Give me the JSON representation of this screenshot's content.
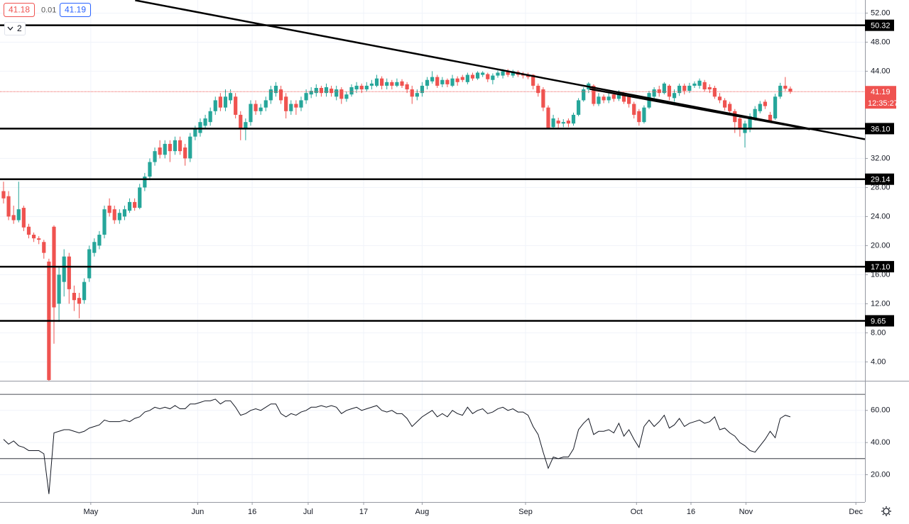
{
  "header": {
    "bid": "41.18",
    "spread": "0.01",
    "ask": "41.19",
    "indicators": "2"
  },
  "chart_data": [
    {
      "type": "candlestick",
      "xlim": [
        -0.7,
        170.8
      ],
      "ylim": [
        1.4,
        53.8
      ],
      "yticks": [
        {
          "value": 4,
          "label": "4.00"
        },
        {
          "value": 8,
          "label": "8.00"
        },
        {
          "value": 12,
          "label": "12.00"
        },
        {
          "value": 16,
          "label": "16.00"
        },
        {
          "value": 20,
          "label": "20.00"
        },
        {
          "value": 24,
          "label": "24.00"
        },
        {
          "value": 28,
          "label": "28.00"
        },
        {
          "value": 32,
          "label": "32.00"
        },
        {
          "value": 44,
          "label": "44.00"
        },
        {
          "value": 48,
          "label": "48.00"
        },
        {
          "value": 52,
          "label": "52.00"
        }
      ],
      "grid": true,
      "up_color": "#26a69a",
      "down_color": "#ef5350",
      "open": [
        27.5,
        26.8,
        24.2,
        23.5,
        25.2,
        22.6,
        21.5,
        21.0,
        20.5,
        17.8,
        22.6,
        12.0,
        15.0,
        18.5,
        13.5,
        12.8,
        12.5,
        15.5,
        19.0,
        20.0,
        21.5,
        25.5,
        25.0,
        23.5,
        24.0,
        24.8,
        26.0,
        25.2,
        28.0,
        29.5,
        31.5,
        33.5,
        32.5,
        34.0,
        33.0,
        34.5,
        33.5,
        32.0,
        35.0,
        35.5,
        36.5,
        37.0,
        38.5,
        40.5,
        39.0,
        40.0,
        40.5,
        38.0,
        36.0,
        37.0,
        39.5,
        38.5,
        39.0,
        40.0,
        41.0,
        41.5,
        40.5,
        38.5,
        39.5,
        39.0,
        40.0,
        40.8,
        41.0,
        41.7,
        41.0,
        41.6,
        40.5,
        41.5,
        40.2,
        40.8,
        41.5,
        42.0,
        41.5,
        42.0,
        42.0,
        43.0,
        42.0,
        42.5,
        42.0,
        42.6,
        42.2,
        41.5,
        40.5,
        41.0,
        42.0,
        42.6,
        43.2,
        42.2,
        42.8,
        42.0,
        43.0,
        43.2,
        42.5,
        43.5,
        43.0,
        43.5,
        43.6,
        42.8,
        43.4,
        43.4,
        44.0,
        43.4,
        43.9,
        43.6,
        43.5,
        43.5,
        42.0,
        41.5,
        39.0,
        36.3,
        37.2,
        36.8,
        37.2,
        36.8,
        38.0,
        40.0,
        41.5,
        42.0,
        39.5,
        40.5,
        40.0,
        40.8,
        40.2,
        41.0,
        40.5,
        39.5,
        38.5,
        37.0,
        39.0,
        40.5,
        41.5,
        41.0,
        42.0,
        40.3,
        41.0,
        42.0,
        41.3,
        42.0,
        42.0,
        42.5,
        41.8,
        41.7,
        40.5,
        40.0,
        39.5,
        38.5,
        37.5,
        35.5,
        36.0,
        37.5,
        38.5,
        39.8,
        38.0,
        37.5,
        40.5,
        42.0,
        41.6
      ],
      "high": [
        28.8,
        27.5,
        25.5,
        28.8,
        25.5,
        23.0,
        21.8,
        21.3,
        20.8,
        18.2,
        22.8,
        17.0,
        19.5,
        19.0,
        14.5,
        13.5,
        15.5,
        20.0,
        21.0,
        22.0,
        25.5,
        26.5,
        25.5,
        25.0,
        25.5,
        26.5,
        26.5,
        28.5,
        30.0,
        32.0,
        33.5,
        34.5,
        34.5,
        34.5,
        35.0,
        35.0,
        34.0,
        35.5,
        36.5,
        37.5,
        38.0,
        39.0,
        40.5,
        41.0,
        41.5,
        41.5,
        41.0,
        38.5,
        37.5,
        40.0,
        40.0,
        39.5,
        40.5,
        42.0,
        42.5,
        42.0,
        41.0,
        40.0,
        40.0,
        40.5,
        41.5,
        41.8,
        42.2,
        42.0,
        42.3,
        42.0,
        42.0,
        41.8,
        41.2,
        42.2,
        42.5,
        42.3,
        42.5,
        42.8,
        43.5,
        43.3,
        43.0,
        42.8,
        43.0,
        42.9,
        42.5,
        42.0,
        41.5,
        42.5,
        43.2,
        44.0,
        43.5,
        43.2,
        43.0,
        43.5,
        43.3,
        43.5,
        43.8,
        43.8,
        44.0,
        44.0,
        43.8,
        43.7,
        44.1,
        44.3,
        44.3,
        44.2,
        44.1,
        43.9,
        43.8,
        43.6,
        42.3,
        41.8,
        39.3,
        38.0,
        37.6,
        37.4,
        37.5,
        38.3,
        40.3,
        41.8,
        42.5,
        42.2,
        41.0,
        40.8,
        41.0,
        41.2,
        41.4,
        41.2,
        40.8,
        39.8,
        38.8,
        39.3,
        41.3,
        41.8,
        42.0,
        42.5,
        42.2,
        41.5,
        42.3,
        42.3,
        42.4,
        42.6,
        43.0,
        42.8,
        42.2,
        42.0,
        41.0,
        40.3,
        39.8,
        38.8,
        37.8,
        37.2,
        38.2,
        39.2,
        39.9,
        40.1,
        38.4,
        40.9,
        42.4,
        43.2,
        41.9
      ],
      "low": [
        25.8,
        23.5,
        23.0,
        23.2,
        22.0,
        21.0,
        20.5,
        20.2,
        18.2,
        1.4,
        6.5,
        9.5,
        13.0,
        12.0,
        11.0,
        10.0,
        12.0,
        15.0,
        18.5,
        19.5,
        21.0,
        24.0,
        23.0,
        23.0,
        23.5,
        24.5,
        24.8,
        25.0,
        27.5,
        29.0,
        31.0,
        32.0,
        32.0,
        31.5,
        32.5,
        32.5,
        31.0,
        31.5,
        34.5,
        35.0,
        36.0,
        36.5,
        38.0,
        38.5,
        38.5,
        39.5,
        37.5,
        34.5,
        34.5,
        36.5,
        38.0,
        38.0,
        38.5,
        39.5,
        40.5,
        39.5,
        37.5,
        38.0,
        38.0,
        38.5,
        39.5,
        40.3,
        40.5,
        40.5,
        40.5,
        40.5,
        40.0,
        39.5,
        39.8,
        40.5,
        41.0,
        41.0,
        41.2,
        41.5,
        41.8,
        41.5,
        41.5,
        41.5,
        41.8,
        41.7,
        41.0,
        39.5,
        40.0,
        40.5,
        41.5,
        42.3,
        41.7,
        41.8,
        41.8,
        41.8,
        42.0,
        42.5,
        42.2,
        42.7,
        42.8,
        43.2,
        42.5,
        42.2,
        43.1,
        43.0,
        43.2,
        43.1,
        43.2,
        43.0,
        42.9,
        41.5,
        40.5,
        38.5,
        36.0,
        36.0,
        36.2,
        36.3,
        36.3,
        36.5,
        37.8,
        39.8,
        41.0,
        39.2,
        39.2,
        39.6,
        39.6,
        39.8,
        39.9,
        39.5,
        39.0,
        37.5,
        36.5,
        36.8,
        38.8,
        40.2,
        40.5,
        40.8,
        40.0,
        39.8,
        40.6,
        40.8,
        41.0,
        41.7,
        41.6,
        41.2,
        41.0,
        40.2,
        39.6,
        38.6,
        38.0,
        35.5,
        35.0,
        33.5,
        35.6,
        37.2,
        38.2,
        38.8,
        36.9,
        37.3,
        40.2,
        41.3,
        40.9
      ],
      "close": [
        26.5,
        24.0,
        23.5,
        25.0,
        22.5,
        21.5,
        21.0,
        20.8,
        19.0,
        1.5,
        11.5,
        16.0,
        18.5,
        14.0,
        12.5,
        12.0,
        15.0,
        19.5,
        20.5,
        21.5,
        25.0,
        24.5,
        23.5,
        24.5,
        25.0,
        26.0,
        25.2,
        28.0,
        29.5,
        31.5,
        33.0,
        32.5,
        34.0,
        33.0,
        34.5,
        33.0,
        32.0,
        35.0,
        36.0,
        37.0,
        37.5,
        38.5,
        40.0,
        39.0,
        40.5,
        41.0,
        38.0,
        36.0,
        37.0,
        39.5,
        38.5,
        39.0,
        40.0,
        41.5,
        42.0,
        40.0,
        38.5,
        39.5,
        39.0,
        40.0,
        41.0,
        41.3,
        41.7,
        41.0,
        41.8,
        41.0,
        41.5,
        40.2,
        40.8,
        41.8,
        42.0,
        41.5,
        42.0,
        42.3,
        43.0,
        42.0,
        42.5,
        42.0,
        42.5,
        42.0,
        41.5,
        40.5,
        41.0,
        42.0,
        42.8,
        43.2,
        42.0,
        42.8,
        42.2,
        43.0,
        42.5,
        42.8,
        43.5,
        43.0,
        43.8,
        43.8,
        42.9,
        43.4,
        43.8,
        44.0,
        43.5,
        44.0,
        43.5,
        43.4,
        43.2,
        42.0,
        41.0,
        39.0,
        36.2,
        37.5,
        36.8,
        37.0,
        36.8,
        38.0,
        40.0,
        41.5,
        42.3,
        39.5,
        40.5,
        40.0,
        40.5,
        40.2,
        41.0,
        39.8,
        39.5,
        38.0,
        37.0,
        39.0,
        41.0,
        41.5,
        41.0,
        42.3,
        40.5,
        41.0,
        42.0,
        41.3,
        42.0,
        42.3,
        42.7,
        41.5,
        41.5,
        40.5,
        40.0,
        39.0,
        38.5,
        37.0,
        36.0,
        36.8,
        37.8,
        38.8,
        39.5,
        39.2,
        37.2,
        40.5,
        42.0,
        41.6,
        41.19
      ],
      "levels": [
        {
          "value": 50.32,
          "label": "50.32"
        },
        {
          "value": 36.1,
          "label": "36.10"
        },
        {
          "value": 29.14,
          "label": "29.14"
        },
        {
          "value": 17.1,
          "label": "17.10"
        },
        {
          "value": 9.65,
          "label": "9.65"
        }
      ],
      "trendlines": [
        {
          "x": [
            26.1,
            170.8
          ],
          "y": [
            53.76,
            34.63
          ]
        },
        {
          "x": [
            116.2,
            159.9
          ],
          "y": [
            41.56,
            36.0
          ]
        }
      ],
      "last_price": {
        "value": 41.19,
        "label": "41.19"
      },
      "countdown": "12:35:27"
    },
    {
      "type": "line",
      "xlim": [
        -0.7,
        170.8
      ],
      "ylim": [
        3,
        78
      ],
      "xticks": [
        {
          "value": 17.3,
          "label": "May"
        },
        {
          "value": 38.5,
          "label": "Jun"
        },
        {
          "value": 49.3,
          "label": "16"
        },
        {
          "value": 60.4,
          "label": "Jul"
        },
        {
          "value": 71.4,
          "label": "17"
        },
        {
          "value": 83.0,
          "label": "Aug"
        },
        {
          "value": 103.5,
          "label": "Sep"
        },
        {
          "value": 125.5,
          "label": "Oct"
        },
        {
          "value": 136.3,
          "label": "16"
        },
        {
          "value": 147.2,
          "label": "Nov"
        },
        {
          "value": 169.0,
          "label": "Dec"
        }
      ],
      "yticks": [
        {
          "value": 20,
          "label": "20.00"
        },
        {
          "value": 40,
          "label": "40.00"
        },
        {
          "value": 60,
          "label": "60.00"
        }
      ],
      "levels": [
        70,
        30
      ],
      "grid": true,
      "color": "#131722",
      "values": [
        42,
        39,
        41,
        38,
        37,
        35,
        35,
        35,
        33,
        8,
        46,
        47,
        48,
        48,
        47,
        46,
        47,
        49,
        50,
        51,
        54,
        53,
        53,
        53,
        54,
        53,
        55,
        56,
        59,
        60,
        62,
        61,
        62,
        61,
        63,
        61,
        61,
        64,
        64,
        65,
        66,
        66,
        67,
        64,
        66,
        66,
        62,
        57,
        58,
        60,
        61,
        60,
        62,
        64,
        64,
        58,
        56,
        58,
        57,
        59,
        60,
        62,
        62,
        63,
        62,
        63,
        62,
        58,
        60,
        61,
        62,
        60,
        61,
        62,
        63,
        60,
        59,
        60,
        58,
        58,
        55,
        50,
        53,
        56,
        58,
        60,
        56,
        58,
        56,
        60,
        58,
        57,
        62,
        58,
        60,
        61,
        58,
        59,
        61,
        62,
        60,
        61,
        59,
        59,
        57,
        50,
        45,
        34,
        24,
        31,
        30,
        31,
        31,
        36,
        48,
        52,
        55,
        45,
        47,
        47,
        48,
        46,
        52,
        44,
        48,
        42,
        37,
        50,
        54,
        50,
        53,
        57,
        49,
        51,
        55,
        50,
        52,
        53,
        54,
        52,
        53,
        56,
        48,
        49,
        46,
        44,
        40,
        38,
        35,
        34,
        38,
        42,
        47,
        43,
        55,
        57,
        56
      ]
    }
  ]
}
